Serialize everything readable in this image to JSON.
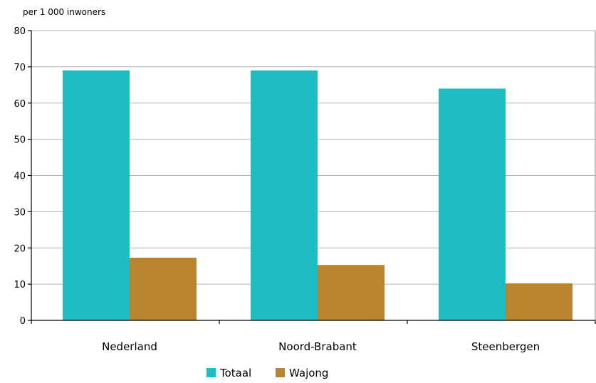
{
  "chart_data": {
    "type": "bar",
    "title": "",
    "unit_label": "per 1 000 inwoners",
    "xlabel": "",
    "ylabel": "",
    "categories": [
      "Nederland",
      "Noord-Brabant",
      "Steenbergen"
    ],
    "series": [
      {
        "name": "Totaal",
        "color": "#1fbcc4",
        "values": [
          69,
          69,
          64
        ]
      },
      {
        "name": "Wajong",
        "color": "#b8842e",
        "values": [
          17.3,
          15.3,
          10.2
        ]
      }
    ],
    "ylim": [
      0,
      80
    ],
    "yticks": [
      0,
      10,
      20,
      30,
      40,
      50,
      60,
      70,
      80
    ],
    "grid": true,
    "legend_position": "bottom-center"
  }
}
